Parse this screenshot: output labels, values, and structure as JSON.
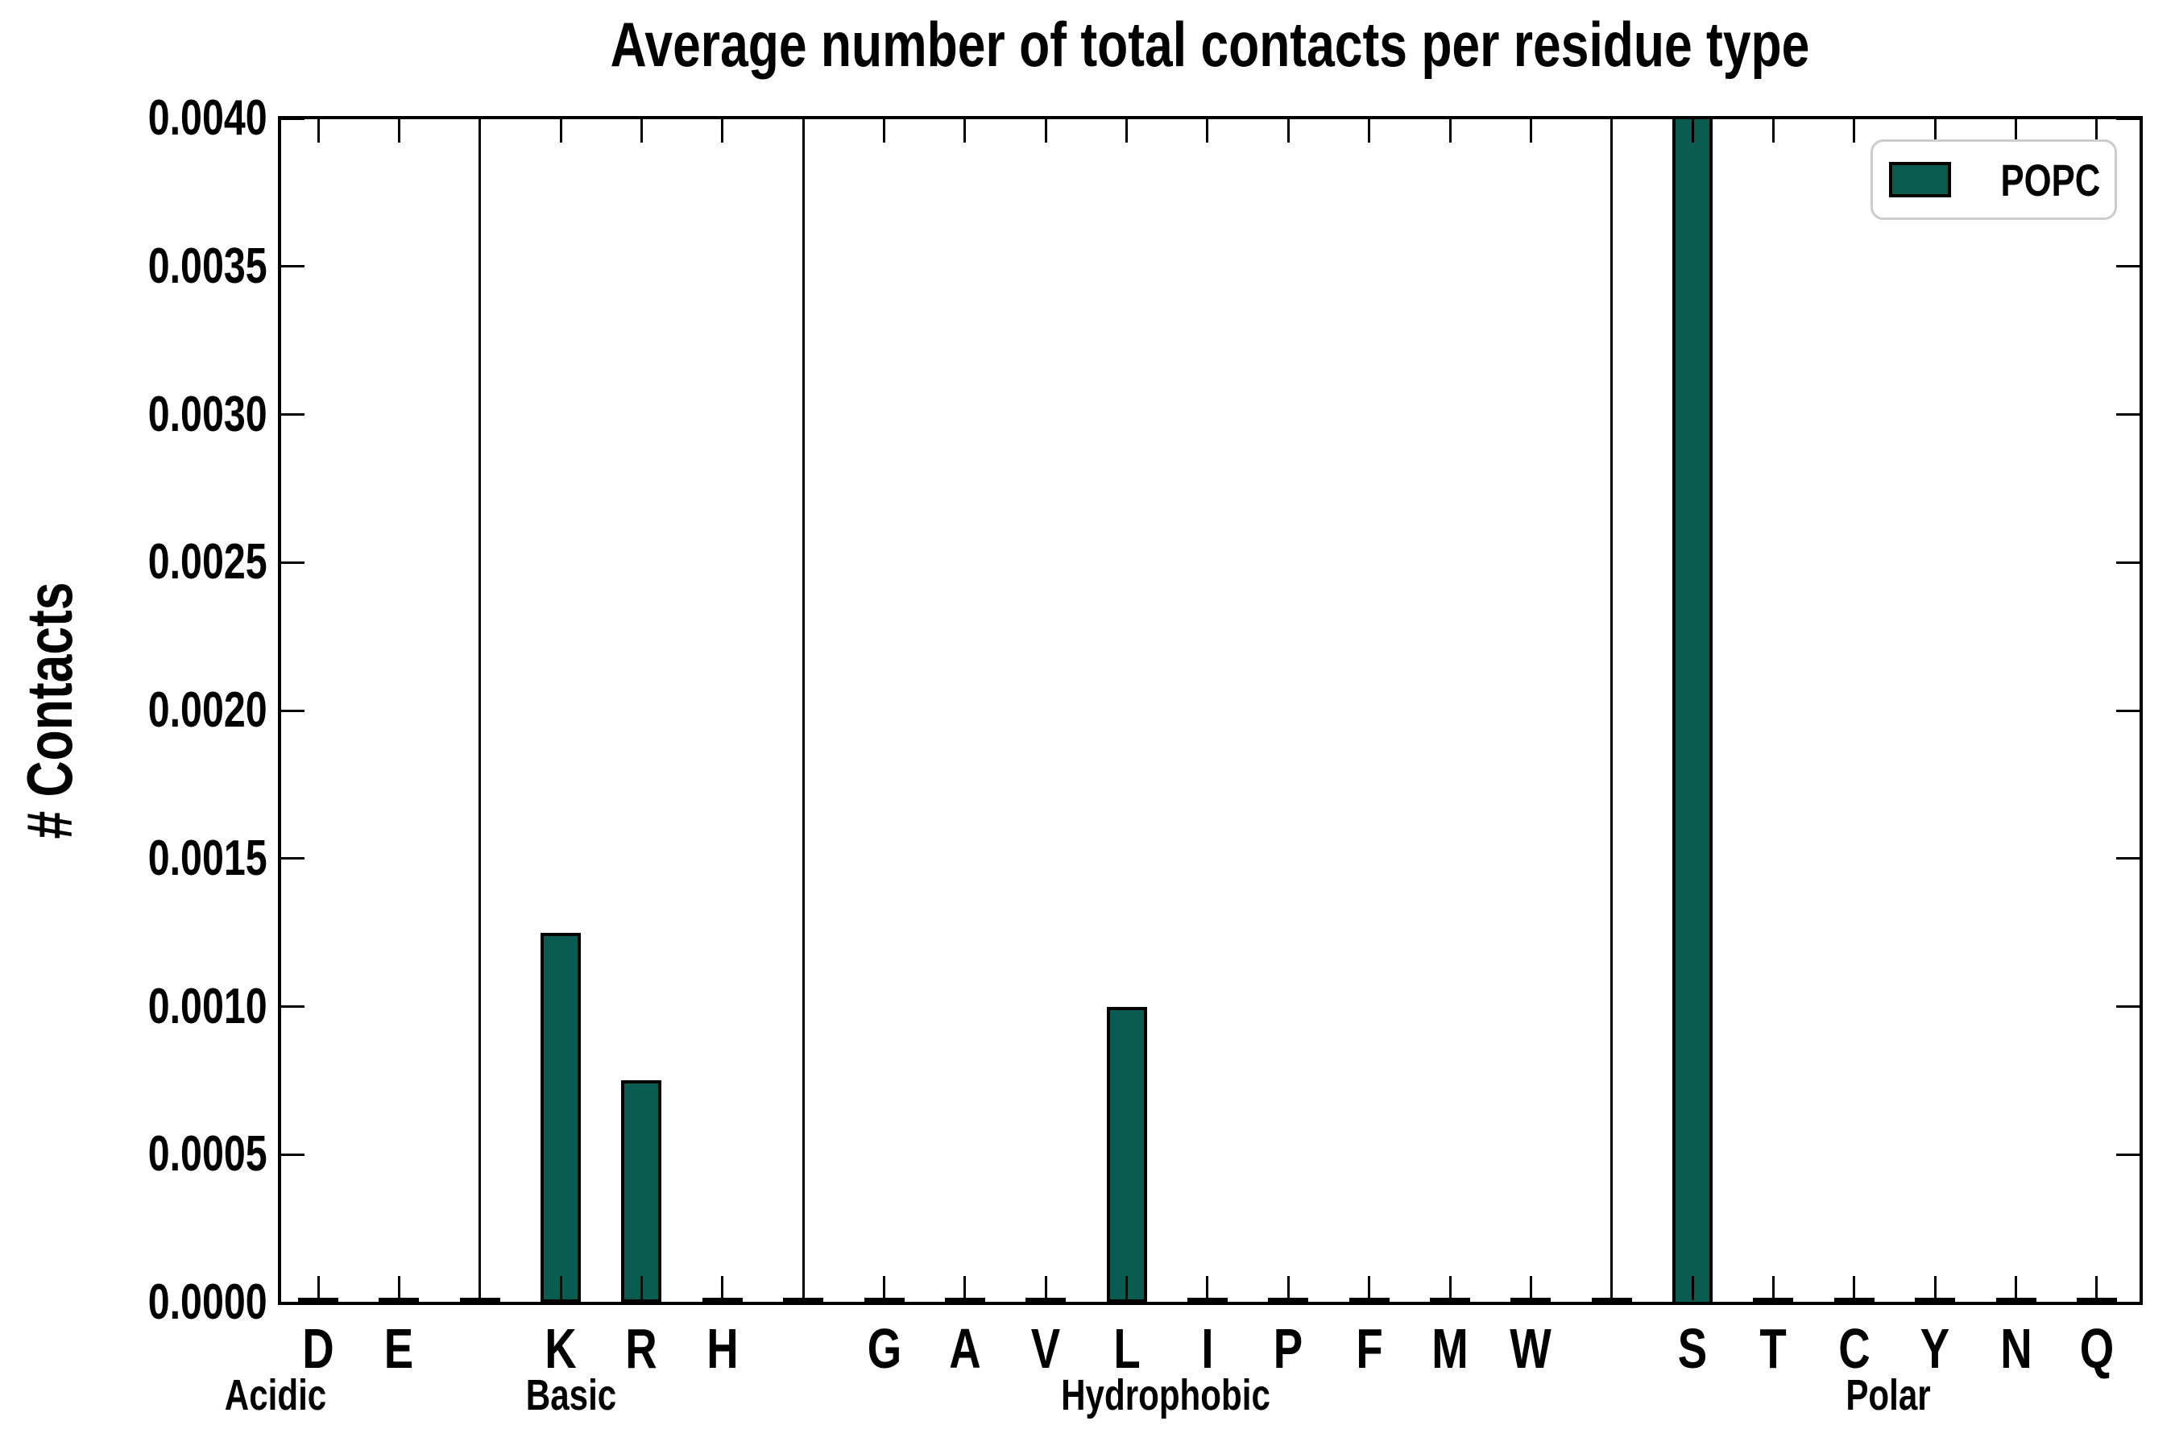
{
  "page": {
    "background": "#ffffff"
  },
  "chart_data": {
    "type": "bar",
    "title": "Average number of total contacts per residue type",
    "ylabel": "# Contacts",
    "xlabel": "",
    "ylim": [
      0.0,
      0.004
    ],
    "ytick_labels": [
      "0.0000",
      "0.0005",
      "0.0010",
      "0.0015",
      "0.0020",
      "0.0025",
      "0.0030",
      "0.0035",
      "0.0040"
    ],
    "grid": false,
    "legend": {
      "position": "upper-right",
      "items": [
        {
          "label": "POPC",
          "color": "#0A5C50"
        }
      ]
    },
    "style": {
      "bar_fill": "#0A5C50",
      "bar_edge": "#000000",
      "divider_color": "#000000",
      "legend_border": "#CCCCCC",
      "text_color": "#000000"
    },
    "groups": [
      {
        "label": "Acidic",
        "residues": [
          "D",
          "E"
        ]
      },
      {
        "label": "Basic",
        "residues": [
          "K",
          "R",
          "H"
        ]
      },
      {
        "label": "Hydrophobic",
        "residues": [
          "G",
          "A",
          "V",
          "L",
          "I",
          "P",
          "F",
          "M",
          "W"
        ]
      },
      {
        "label": "Polar",
        "residues": [
          "S",
          "T",
          "C",
          "Y",
          "N",
          "Q"
        ]
      }
    ],
    "series": [
      {
        "name": "POPC",
        "values": {
          "D": 0.0,
          "E": 0.0,
          "K": 0.00125,
          "R": 0.00075,
          "H": 0.0,
          "G": 0.0,
          "A": 0.0,
          "V": 0.0,
          "L": 0.001,
          "I": 0.0,
          "P": 0.0,
          "F": 0.0,
          "M": 0.0,
          "W": 0.0,
          "S": 0.004,
          "T": 0.0,
          "C": 0.0,
          "Y": 0.0,
          "N": 0.0,
          "Q": 0.0
        }
      }
    ],
    "clipped_bars": [
      "S"
    ],
    "note": "The S bar is clipped at the top of the axis; its true value exceeds the y-axis maximum of 0.0040."
  }
}
